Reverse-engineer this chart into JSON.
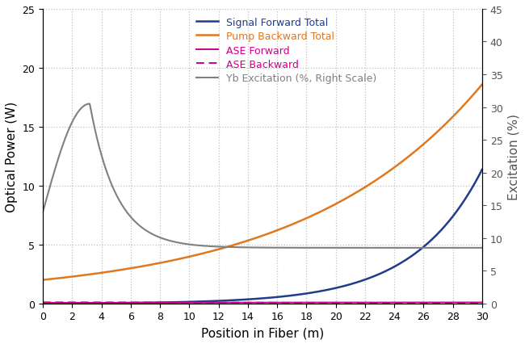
{
  "title": "",
  "xlabel": "Position in Fiber (m)",
  "ylabel_left": "Optical Power (W)",
  "ylabel_right": "Excitation (%)",
  "x_min": 0,
  "x_max": 30,
  "y_left_min": 0,
  "y_left_max": 25,
  "y_right_min": 0,
  "y_right_max": 45,
  "x_ticks": [
    0,
    2,
    4,
    6,
    8,
    10,
    12,
    14,
    16,
    18,
    20,
    22,
    24,
    26,
    28,
    30
  ],
  "y_left_ticks": [
    0,
    5,
    10,
    15,
    20,
    25
  ],
  "y_right_ticks": [
    0,
    5,
    10,
    15,
    20,
    25,
    30,
    35,
    40,
    45
  ],
  "legend_labels": [
    "Signal Forward Total",
    "Pump Backward Total",
    "ASE Forward",
    "ASE Backward",
    "Yb Excitation (%, Right Scale)"
  ],
  "signal_color": "#1f3d8a",
  "pump_color": "#e07820",
  "ase_fwd_color": "#cc0088",
  "ase_bwd_color": "#cc0088",
  "yb_color": "#808080",
  "background_color": "#ffffff",
  "grid_color": "#c0c0c0",
  "figsize": [
    6.5,
    4.27
  ],
  "dpi": 100
}
